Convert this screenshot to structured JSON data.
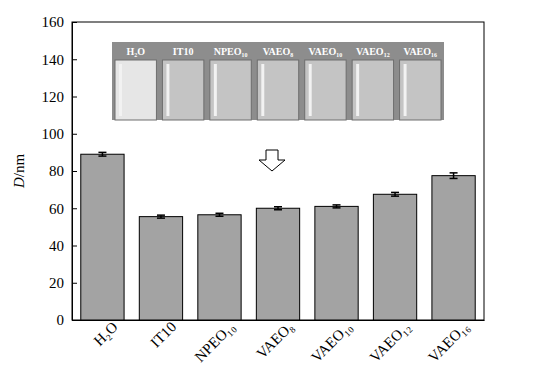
{
  "chart_data": {
    "type": "bar",
    "y_label": "D/nm",
    "categories": [
      "H₂O",
      "IT10",
      "NPEO₁₀",
      "VAEO₈",
      "VAEO₁₀",
      "VAEO₁₂",
      "VAEO₁₆"
    ],
    "values": [
      89,
      55.5,
      56.5,
      60,
      61,
      67.5,
      77.5
    ],
    "errors": [
      1,
      0.8,
      0.8,
      0.8,
      0.8,
      1,
      1.5
    ],
    "color": "#a3a3a3",
    "ylim": [
      0,
      160
    ],
    "yticks": [
      0,
      20,
      40,
      60,
      80,
      100,
      120,
      140,
      160
    ],
    "grid": false
  }
}
